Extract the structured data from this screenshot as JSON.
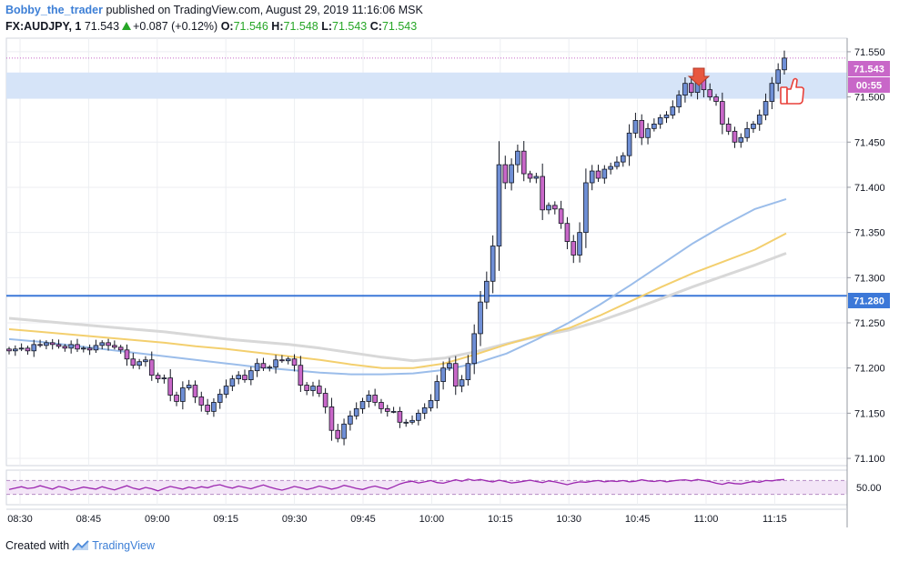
{
  "header": {
    "user": "Bobby_the_trader",
    "published_text": "published on TradingView.com, August 29, 2019 11:16:06 MSK",
    "symbol": "FX:AUDJPY, 1",
    "last": "71.543",
    "change": "+0.087 (+0.12%)",
    "o_label": "O:",
    "o_value": "71.546",
    "h_label": "H:",
    "h_value": "71.548",
    "l_label": "L:",
    "l_value": "71.543",
    "c_label": "C:",
    "c_value": "71.543"
  },
  "price_tags": {
    "current": "71.543",
    "countdown": "00:55",
    "level": "71.280"
  },
  "footer": {
    "created_with": "Created with",
    "brand": "TradingView"
  },
  "colors": {
    "up_candle": "#6f8fd6",
    "down_candle": "#c867c8",
    "wick": "#131722",
    "ma_fast": "#9bbdea",
    "ma_mid": "#f3cf6e",
    "ma_slow": "#d8d8d8",
    "zone": "#d6e4f8",
    "level_line": "#3c78d8",
    "rsi_line": "#9c27b0",
    "rsi_band": "#f3e5f7",
    "annotation": "#e8413a"
  },
  "icons": [
    "down-arrow-icon",
    "thumbs-up-icon",
    "tradingview-logo-icon"
  ],
  "chart_data": [
    {
      "type": "candlestick",
      "title": "",
      "x_ticks": [
        "08:30",
        "08:45",
        "09:00",
        "09:15",
        "09:30",
        "09:45",
        "10:00",
        "10:15",
        "10:30",
        "10:45",
        "11:00",
        "11:15"
      ],
      "y_ticks": [
        "71.550",
        "71.500",
        "71.450",
        "71.400",
        "71.350",
        "71.300",
        "71.250",
        "71.200",
        "71.150",
        "71.100"
      ],
      "ylim": [
        71.092,
        71.565
      ],
      "x_range": [
        "08:30",
        "11:30"
      ],
      "grid": true,
      "close_series": [
        71.219,
        71.221,
        71.222,
        71.219,
        71.226,
        71.225,
        71.228,
        71.226,
        71.224,
        71.222,
        71.226,
        71.221,
        71.222,
        71.22,
        71.225,
        71.228,
        71.225,
        71.223,
        71.22,
        71.21,
        71.203,
        71.207,
        71.209,
        71.192,
        71.188,
        71.189,
        71.17,
        71.163,
        71.178,
        71.181,
        71.168,
        71.159,
        71.152,
        71.162,
        71.171,
        71.18,
        71.188,
        71.192,
        71.187,
        71.197,
        71.205,
        71.2,
        71.201,
        71.209,
        71.208,
        71.21,
        71.203,
        71.181,
        71.175,
        71.18,
        71.172,
        71.157,
        71.131,
        71.122,
        71.138,
        71.147,
        71.155,
        71.163,
        71.17,
        71.162,
        71.155,
        71.152,
        71.152,
        71.14,
        71.14,
        71.142,
        71.15,
        71.156,
        71.164,
        71.185,
        71.2,
        71.205,
        71.18,
        71.187,
        71.205,
        71.238,
        71.273,
        71.296,
        71.335,
        71.425,
        71.405,
        71.425,
        71.44,
        71.415,
        71.41,
        71.412,
        71.375,
        71.38,
        71.376,
        71.36,
        71.34,
        71.325,
        71.35,
        71.405,
        71.418,
        71.41,
        71.42,
        71.423,
        71.428,
        71.435,
        71.46,
        71.474,
        71.455,
        71.465,
        71.47,
        71.477,
        71.48,
        71.489,
        71.502,
        71.515,
        71.505,
        71.522,
        71.508,
        71.5,
        71.495,
        71.47,
        71.462,
        71.45,
        71.455,
        71.465,
        71.47,
        71.48,
        71.495,
        71.515,
        71.53,
        71.543
      ],
      "ma_fast_series": [
        71.232,
        71.229,
        71.225,
        71.221,
        71.217,
        71.213,
        71.209,
        71.205,
        71.201,
        71.198,
        71.195,
        71.193,
        71.193,
        71.194,
        71.198,
        71.205,
        71.216,
        71.232,
        71.25,
        71.27,
        71.292,
        71.315,
        71.338,
        71.358,
        71.376,
        71.387
      ],
      "ma_mid_series": [
        71.243,
        71.24,
        71.237,
        71.234,
        71.231,
        71.228,
        71.224,
        71.221,
        71.217,
        71.213,
        71.209,
        71.204,
        71.2,
        71.2,
        71.205,
        71.215,
        71.226,
        71.236,
        71.244,
        71.258,
        71.274,
        71.29,
        71.305,
        71.318,
        71.331,
        71.349
      ],
      "ma_slow_series": [
        71.255,
        71.252,
        71.249,
        71.246,
        71.243,
        71.24,
        71.236,
        71.232,
        71.229,
        71.226,
        71.222,
        71.217,
        71.212,
        71.208,
        71.211,
        71.218,
        71.227,
        71.235,
        71.242,
        71.252,
        71.264,
        71.277,
        71.29,
        71.302,
        71.314,
        71.327
      ],
      "zone": [
        71.498,
        71.527
      ],
      "level": 71.28,
      "current_price": 71.543
    },
    {
      "type": "line",
      "title": "",
      "y_ticks": [
        "50.00"
      ],
      "band": [
        30,
        70
      ],
      "ylim": [
        0,
        100
      ],
      "values": [
        44,
        48,
        52,
        47,
        49,
        55,
        50,
        45,
        53,
        49,
        42,
        46,
        51,
        48,
        45,
        52,
        47,
        43,
        49,
        55,
        48,
        44,
        50,
        46,
        40,
        47,
        53,
        49,
        45,
        51,
        47,
        52,
        49,
        55,
        58,
        52,
        48,
        54,
        50,
        46,
        52,
        57,
        51,
        46,
        42,
        47,
        53,
        49,
        44,
        48,
        54,
        50,
        45,
        49,
        56,
        52,
        47,
        44,
        50,
        54,
        49,
        45,
        52,
        60,
        65,
        68,
        63,
        66,
        70,
        64,
        62,
        67,
        72,
        68,
        74,
        70,
        73,
        69,
        66,
        71,
        67,
        63,
        65,
        68,
        71,
        67,
        64,
        69,
        66,
        62,
        58,
        63,
        66,
        65,
        68,
        70,
        66,
        69,
        67,
        70,
        66,
        68,
        72,
        69,
        67,
        70,
        66,
        69,
        71,
        72,
        69,
        73,
        70,
        67,
        62,
        59,
        64,
        61,
        60,
        64,
        67,
        65,
        70,
        69,
        72,
        73
      ]
    }
  ]
}
